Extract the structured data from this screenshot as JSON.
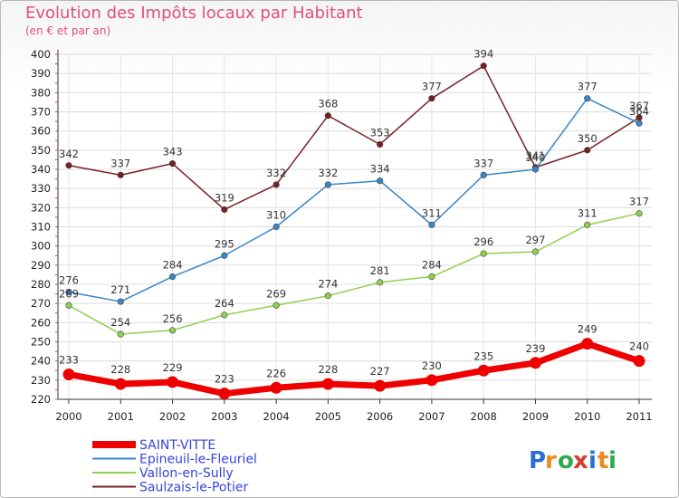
{
  "header": {
    "title": "Evolution des Impôts locaux par Habitant",
    "subtitle": "(en € et par an)"
  },
  "brand": {
    "letters": [
      "P",
      "r",
      "o",
      "x",
      "i",
      "t",
      "i"
    ],
    "colors": [
      "#2a6fd1",
      "#ee8a1a",
      "#2fa84f",
      "#d63b2f",
      "#2a6fd1",
      "#ee8a1a",
      "#2fa84f"
    ]
  },
  "chart_data": {
    "type": "line",
    "x": [
      "2000",
      "2001",
      "2002",
      "2003",
      "2004",
      "2005",
      "2006",
      "2007",
      "2008",
      "2009",
      "2010",
      "2011"
    ],
    "ylim": [
      220,
      400
    ],
    "yticks": [
      220,
      230,
      240,
      250,
      260,
      270,
      280,
      290,
      300,
      310,
      320,
      330,
      340,
      350,
      360,
      370,
      380,
      390,
      400
    ],
    "grid": true,
    "legend": "bottom-left",
    "series": [
      {
        "name": "Saulzais-le-Potier",
        "color": "#7a1f24",
        "values": [
          342,
          337,
          343,
          319,
          332,
          368,
          353,
          377,
          394,
          341,
          350,
          367
        ]
      },
      {
        "name": "Epineuil-le-Fleuriel",
        "color": "#3a86c8",
        "values": [
          276,
          271,
          284,
          295,
          310,
          332,
          334,
          311,
          337,
          340,
          377,
          364
        ]
      },
      {
        "name": "Vallon-en-Sully",
        "color": "#8fd14f",
        "values": [
          269,
          254,
          256,
          264,
          269,
          274,
          281,
          284,
          296,
          297,
          311,
          317
        ]
      },
      {
        "name": "SAINT-VITTE",
        "color": "#ee0000",
        "values": [
          233,
          228,
          229,
          223,
          226,
          228,
          227,
          230,
          235,
          239,
          249,
          240
        ]
      }
    ],
    "legend_order": [
      "SAINT-VITTE",
      "Epineuil-le-Fleuriel",
      "Vallon-en-Sully",
      "Saulzais-le-Potier"
    ]
  }
}
